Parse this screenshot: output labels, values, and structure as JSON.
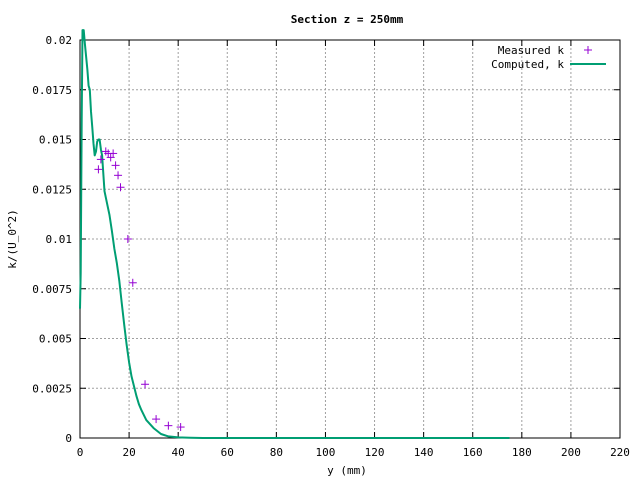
{
  "chart_data": {
    "type": "line",
    "title": "Section z = 250mm",
    "xlabel": "y (mm)",
    "ylabel": "k/(U_0^2)",
    "xlim": [
      0,
      220
    ],
    "ylim": [
      0,
      0.02
    ],
    "x_ticks": [
      "0",
      "20",
      "40",
      "60",
      "80",
      "100",
      "120",
      "140",
      "160",
      "180",
      "200",
      "220"
    ],
    "y_ticks": [
      "0",
      "0.0025",
      "0.005",
      "0.0075",
      "0.01",
      "0.0125",
      "0.015",
      "0.0175",
      "0.02"
    ],
    "grid": true,
    "legend_position": "top-right",
    "colors": {
      "measured": "#9400d3",
      "computed": "#009e73"
    },
    "series": [
      {
        "name": "Measured k",
        "style": "points",
        "marker": "+",
        "x": [
          7.5,
          8.5,
          10.5,
          11.5,
          12.5,
          13.5,
          14.5,
          15.5,
          16.5,
          19.5,
          21.5,
          26.5,
          31,
          36,
          41
        ],
        "y": [
          0.0135,
          0.014,
          0.0144,
          0.0143,
          0.0141,
          0.0143,
          0.0137,
          0.0132,
          0.0126,
          0.01,
          0.0078,
          0.0027,
          0.00095,
          0.00062,
          0.00055
        ]
      },
      {
        "name": "Computed, k",
        "style": "line",
        "x": [
          0,
          0.3,
          0.7,
          1,
          1.5,
          2,
          3,
          3.5,
          4,
          4.5,
          5,
          5.5,
          6,
          6.5,
          7,
          7.5,
          8,
          8.5,
          9,
          10,
          11,
          12,
          13,
          14,
          15,
          16,
          17,
          18,
          19,
          20,
          21,
          22,
          23,
          24,
          25,
          27,
          30,
          33,
          36,
          40,
          45,
          50,
          60,
          80,
          120,
          175
        ],
        "y": [
          0.0065,
          0.0083,
          0.016,
          0.0205,
          0.0205,
          0.0198,
          0.0185,
          0.0177,
          0.0175,
          0.0164,
          0.0156,
          0.0148,
          0.0142,
          0.0144,
          0.0149,
          0.015,
          0.015,
          0.0145,
          0.0142,
          0.0124,
          0.0118,
          0.0112,
          0.0104,
          0.0095,
          0.0088,
          0.0079,
          0.0068,
          0.0057,
          0.0047,
          0.0038,
          0.0031,
          0.0026,
          0.0021,
          0.0017,
          0.0014,
          0.0009,
          0.0005,
          0.0002,
          8e-05,
          3e-05,
          1e-05,
          0,
          0,
          0,
          0,
          0
        ]
      }
    ]
  }
}
